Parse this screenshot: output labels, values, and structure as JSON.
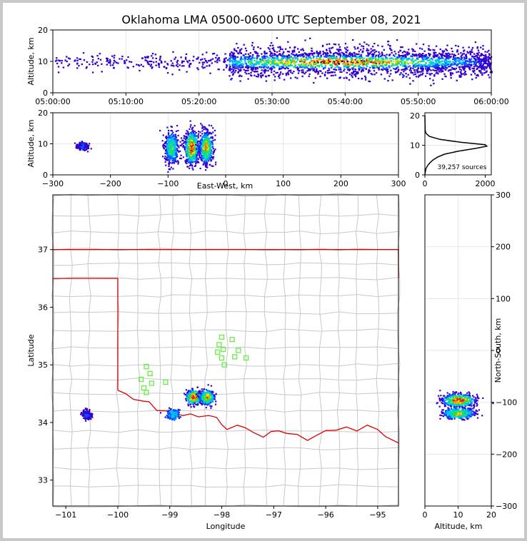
{
  "title": "Oklahoma LMA 0500-0600 UTC September 08, 2021",
  "colors": {
    "state_border": "#dd0000",
    "county_lines": "#c8c8c8",
    "stations": "#66ee44",
    "grid": "#e6e6e6",
    "colormap": [
      "#3300cc",
      "#0055ff",
      "#00bbff",
      "#00e0a0",
      "#33dd33",
      "#ffdd00",
      "#ff8800",
      "#ff0000",
      "#990000",
      "#000000"
    ]
  },
  "chart_data": [
    {
      "id": "time-height",
      "type": "heatmap",
      "xlabel": "",
      "ylabel": "Altitude, km",
      "xlim_minutes": [
        0,
        60
      ],
      "ylim": [
        0,
        20
      ],
      "xticks": [
        "05:00:00",
        "05:10:00",
        "05:20:00",
        "05:30:00",
        "05:40:00",
        "05:50:00",
        "06:00:00"
      ],
      "yticks": [
        "0",
        "10",
        "20"
      ],
      "description_points": {
        "active_start_min": 24,
        "peak_window_min": [
          34,
          44
        ],
        "core_altitude_km": 10
      }
    },
    {
      "id": "eastwest-altitude",
      "type": "heatmap",
      "xlabel": "East-West, km",
      "ylabel": "Altitude, km",
      "xlim": [
        -300,
        300
      ],
      "ylim": [
        0,
        20
      ],
      "xticks": [
        "−300",
        "−200",
        "−100",
        "0",
        "100",
        "200",
        "300"
      ],
      "yticks": [
        "0",
        "10",
        "20"
      ],
      "clusters": [
        {
          "x": -250,
          "z": 9.5,
          "intensity": 0.15
        },
        {
          "x": -95,
          "z": 9,
          "intensity": 0.6
        },
        {
          "x": -60,
          "z": 9,
          "intensity": 1.0
        },
        {
          "x": -35,
          "z": 9,
          "intensity": 0.8
        }
      ]
    },
    {
      "id": "altitude-histogram",
      "type": "line",
      "xlim": [
        0,
        2200
      ],
      "ylim": [
        0,
        21
      ],
      "xticks": [
        "0",
        "2000"
      ],
      "yticks": [
        "0",
        "10",
        "20"
      ],
      "annotation": "39,257 sources",
      "profile": [
        {
          "alt": 0,
          "count": 0
        },
        {
          "alt": 2,
          "count": 30
        },
        {
          "alt": 3,
          "count": 80
        },
        {
          "alt": 4,
          "count": 160
        },
        {
          "alt": 5,
          "count": 260
        },
        {
          "alt": 6,
          "count": 420
        },
        {
          "alt": 7,
          "count": 650
        },
        {
          "alt": 8,
          "count": 1100
        },
        {
          "alt": 9,
          "count": 1700
        },
        {
          "alt": 9.7,
          "count": 2050
        },
        {
          "alt": 10.2,
          "count": 2000
        },
        {
          "alt": 11,
          "count": 1200
        },
        {
          "alt": 12,
          "count": 500
        },
        {
          "alt": 13,
          "count": 150
        },
        {
          "alt": 14,
          "count": 40
        },
        {
          "alt": 15,
          "count": 10
        },
        {
          "alt": 20,
          "count": 0
        }
      ]
    },
    {
      "id": "plan-view",
      "type": "scatter",
      "xlabel": "Longitude",
      "ylabel": "Latitude",
      "xlim": [
        -101.25,
        -94.6
      ],
      "ylim": [
        32.55,
        37.95
      ],
      "xticks": [
        "−101",
        "−100",
        "−99",
        "−98",
        "−97",
        "−96",
        "−95"
      ],
      "yticks": [
        "33",
        "34",
        "35",
        "36",
        "37"
      ],
      "clusters": [
        {
          "lon": -100.6,
          "lat": 34.15,
          "intensity": 0.15
        },
        {
          "lon": -98.95,
          "lat": 34.15,
          "intensity": 0.4
        },
        {
          "lon": -98.55,
          "lat": 34.45,
          "intensity": 1.0
        },
        {
          "lon": -98.3,
          "lat": 34.45,
          "intensity": 0.8
        }
      ],
      "stations": [
        {
          "lon": -99.55,
          "lat": 34.75
        },
        {
          "lon": -99.45,
          "lat": 34.97
        },
        {
          "lon": -99.38,
          "lat": 34.85
        },
        {
          "lon": -99.35,
          "lat": 34.68
        },
        {
          "lon": -99.5,
          "lat": 34.6
        },
        {
          "lon": -99.45,
          "lat": 34.52
        },
        {
          "lon": -99.08,
          "lat": 34.7
        },
        {
          "lon": -98.0,
          "lat": 35.48
        },
        {
          "lon": -98.05,
          "lat": 35.35
        },
        {
          "lon": -98.08,
          "lat": 35.22
        },
        {
          "lon": -97.97,
          "lat": 35.27
        },
        {
          "lon": -98.0,
          "lat": 35.12
        },
        {
          "lon": -97.95,
          "lat": 35.0
        },
        {
          "lon": -97.8,
          "lat": 35.44
        },
        {
          "lon": -97.75,
          "lat": 35.14
        },
        {
          "lon": -97.68,
          "lat": 35.25
        },
        {
          "lon": -97.53,
          "lat": 35.12
        }
      ]
    },
    {
      "id": "altitude-northsouth",
      "type": "heatmap",
      "xlabel": "Altitude, km",
      "ylabel": "North-South, km",
      "xlim": [
        0,
        20
      ],
      "ylim": [
        -300,
        300
      ],
      "xticks": [
        "0",
        "10",
        "20"
      ],
      "yticks": [
        "−300",
        "−200",
        "−100",
        "0",
        "100",
        "200",
        "300"
      ],
      "clusters": [
        {
          "z": 10,
          "y": -95,
          "intensity": 1.0
        },
        {
          "z": 10,
          "y": -120,
          "intensity": 0.7
        }
      ]
    }
  ]
}
